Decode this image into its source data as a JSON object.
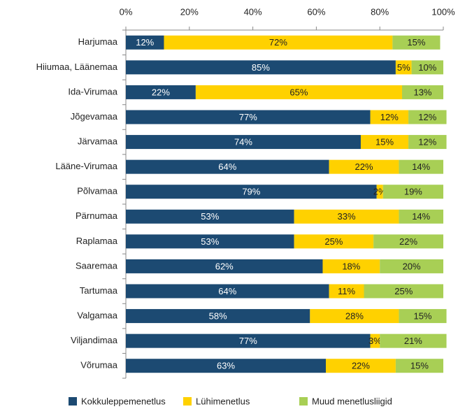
{
  "chart_data": {
    "type": "stacked-barh",
    "categories": [
      "Harjumaa",
      "Hiiumaa, Läänemaa",
      "Ida-Virumaa",
      "Jõgevamaa",
      "Järvamaa",
      "Lääne-Virumaa",
      "Põlvamaa",
      "Pärnumaa",
      "Raplamaa",
      "Saaremaa",
      "Tartumaa",
      "Valgamaa",
      "Viljandimaa",
      "Võrumaa"
    ],
    "series": [
      {
        "name": "Kokkuleppemenetlus",
        "color": "#1c4a72",
        "label_color": "#ffffff",
        "values": [
          12,
          85,
          22,
          77,
          74,
          64,
          79,
          53,
          53,
          62,
          64,
          58,
          77,
          63
        ],
        "value_labels": [
          "12%",
          "85%",
          "22%",
          "77%",
          "74%",
          "64%",
          "79%",
          "53%",
          "53%",
          "62%",
          "64%",
          "58%",
          "77%",
          "63%"
        ]
      },
      {
        "name": "Lühimenetlus",
        "color": "#ffd100",
        "label_color": "#222222",
        "values": [
          72,
          5,
          65,
          12,
          15,
          22,
          2,
          33,
          25,
          18,
          11,
          28,
          3,
          22
        ],
        "value_labels": [
          "72%",
          "5%",
          "65%",
          "12%",
          "15%",
          "22%",
          "2%",
          "33%",
          "25%",
          "18%",
          "11%",
          "28%",
          "3%",
          "22%"
        ]
      },
      {
        "name": "Muud menetlusliigid",
        "color": "#a8cf55",
        "label_color": "#222222",
        "values": [
          15,
          10,
          13,
          12,
          12,
          14,
          19,
          14,
          22,
          20,
          25,
          15,
          21,
          15
        ],
        "value_labels": [
          "15%",
          "10%",
          "13%",
          "12%",
          "12%",
          "14%",
          "19%",
          "14%",
          "22%",
          "20%",
          "25%",
          "15%",
          "21%",
          "15%"
        ]
      }
    ],
    "xlim": [
      0,
      100
    ],
    "xticks": [
      {
        "value": 0,
        "label": "0%"
      },
      {
        "value": 20,
        "label": "20%"
      },
      {
        "value": 40,
        "label": "40%"
      },
      {
        "value": 60,
        "label": "60%"
      },
      {
        "value": 80,
        "label": "80%"
      },
      {
        "value": 100,
        "label": "100%"
      }
    ],
    "legend": "bottom"
  }
}
